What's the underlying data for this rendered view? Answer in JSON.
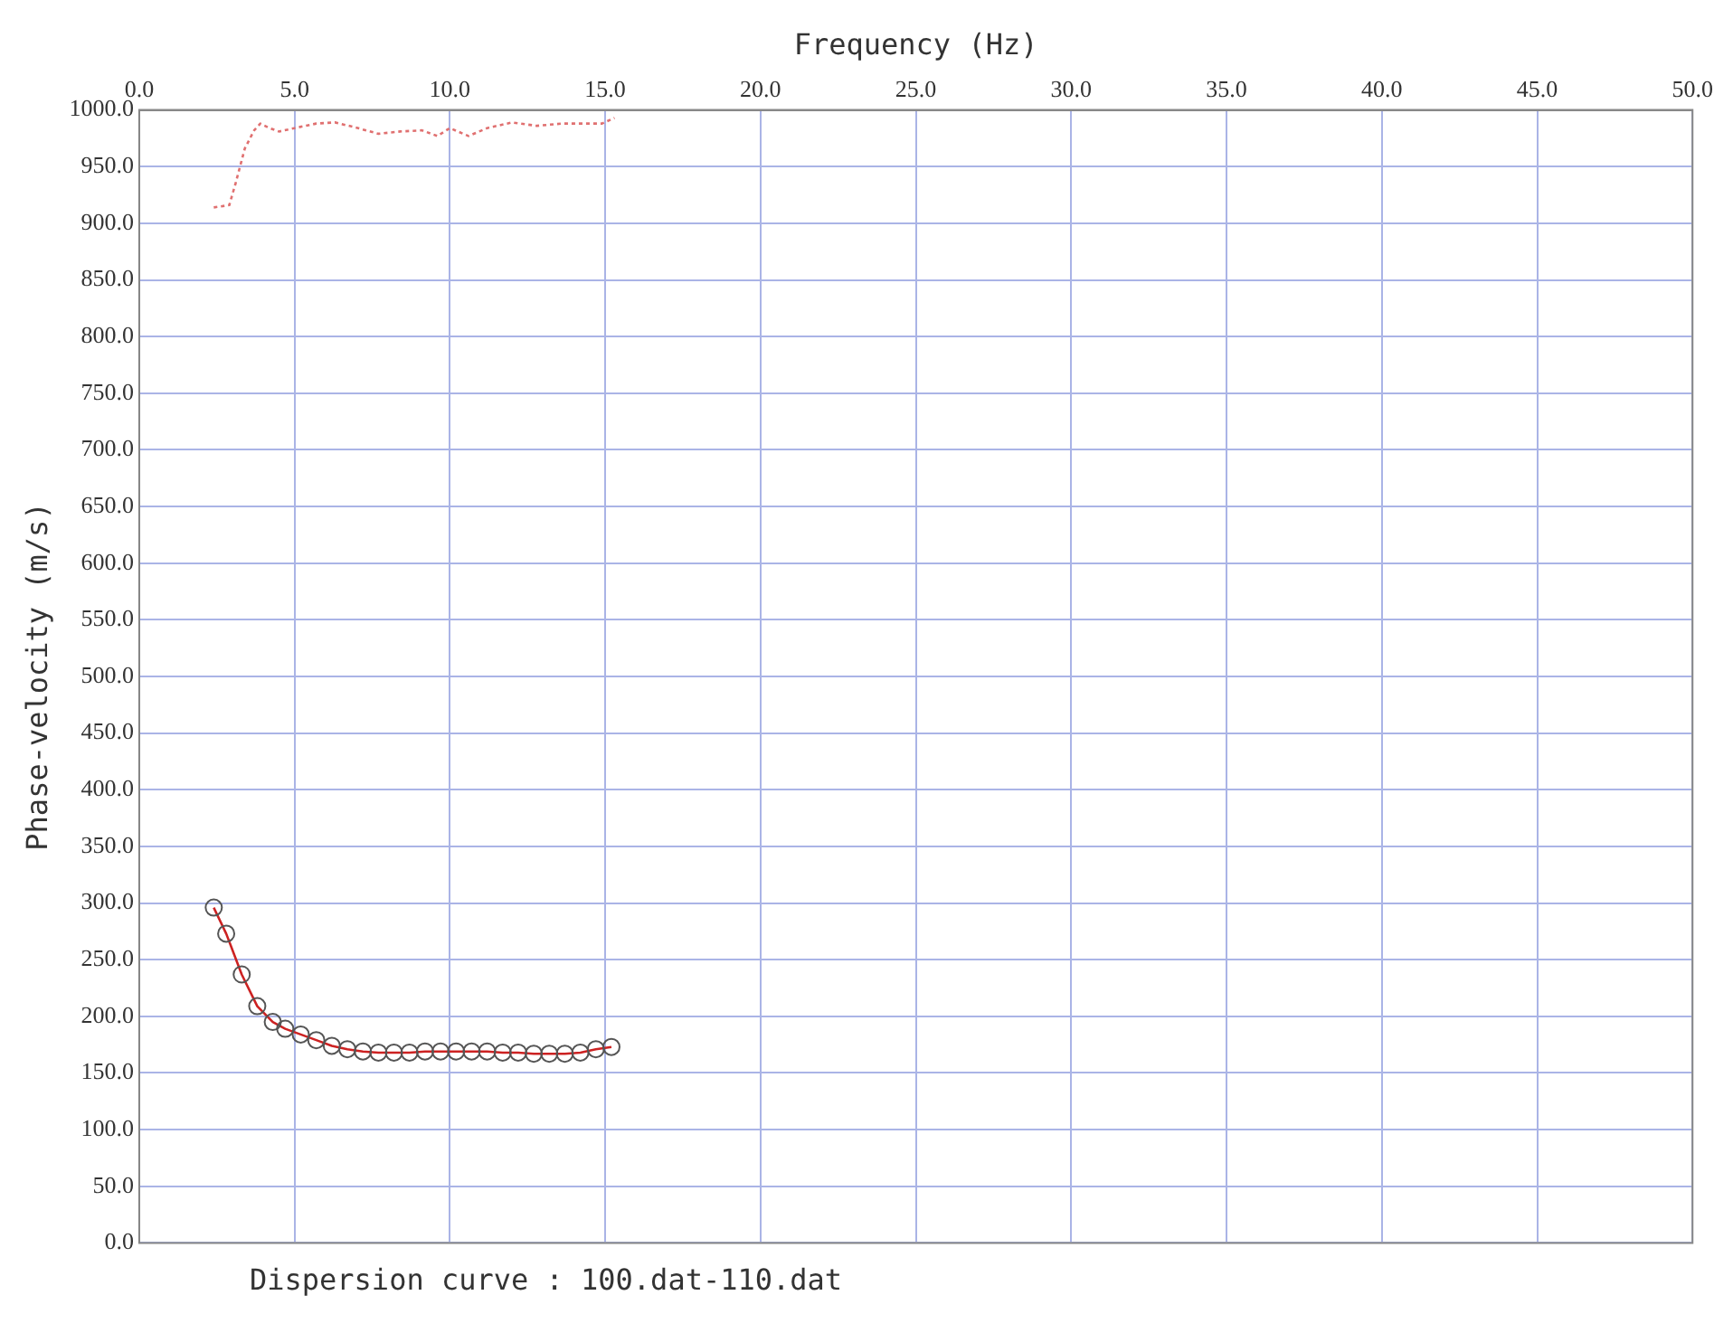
{
  "chart_data": {
    "type": "line",
    "xlabel": "Frequency (Hz)",
    "ylabel": "Phase-velocity (m/s)",
    "xlim": [
      0,
      50
    ],
    "xticks": [
      {
        "value": 0,
        "label": "0.0"
      },
      {
        "value": 5,
        "label": "5.0"
      },
      {
        "value": 10,
        "label": "10.0"
      },
      {
        "value": 15,
        "label": "15.0"
      },
      {
        "value": 20,
        "label": "20.0"
      },
      {
        "value": 25,
        "label": "25.0"
      },
      {
        "value": 30,
        "label": "30.0"
      },
      {
        "value": 35,
        "label": "35.0"
      },
      {
        "value": 40,
        "label": "40.0"
      },
      {
        "value": 45,
        "label": "45.0"
      },
      {
        "value": 50,
        "label": "50.0"
      }
    ],
    "ylim": [
      0,
      1000
    ],
    "yticks": [
      {
        "value": 0,
        "label": "0.0"
      },
      {
        "value": 50,
        "label": "50.0"
      },
      {
        "value": 100,
        "label": "100.0"
      },
      {
        "value": 150,
        "label": "150.0"
      },
      {
        "value": 200,
        "label": "200.0"
      },
      {
        "value": 250,
        "label": "250.0"
      },
      {
        "value": 300,
        "label": "300.0"
      },
      {
        "value": 350,
        "label": "350.0"
      },
      {
        "value": 400,
        "label": "400.0"
      },
      {
        "value": 450,
        "label": "450.0"
      },
      {
        "value": 500,
        "label": "500.0"
      },
      {
        "value": 550,
        "label": "550.0"
      },
      {
        "value": 600,
        "label": "600.0"
      },
      {
        "value": 650,
        "label": "650.0"
      },
      {
        "value": 700,
        "label": "700.0"
      },
      {
        "value": 750,
        "label": "750.0"
      },
      {
        "value": 800,
        "label": "800.0"
      },
      {
        "value": 850,
        "label": "850.0"
      },
      {
        "value": 900,
        "label": "900.0"
      },
      {
        "value": 950,
        "label": "950.0"
      },
      {
        "value": 1000,
        "label": "1000.0"
      }
    ],
    "grid": true,
    "legend": false,
    "annotations": [
      "Dispersion curve : 100.dat-110.dat"
    ],
    "series": [
      {
        "color": "#e07070",
        "marker": "none",
        "line_style": "dotted",
        "x": [
          2.4,
          2.9,
          3.1,
          3.4,
          3.7,
          3.9,
          4.2,
          4.5,
          5.0,
          5.7,
          6.3,
          6.9,
          7.7,
          8.4,
          9.1,
          9.6,
          10.0,
          10.6,
          11.2,
          12.0,
          12.8,
          13.6,
          14.4,
          14.9,
          15.3
        ],
        "values": [
          914,
          916,
          935,
          966,
          982,
          988,
          984,
          981,
          984,
          988,
          989,
          985,
          979,
          981,
          982,
          977,
          984,
          977,
          984,
          989,
          986,
          988,
          988,
          988,
          993
        ]
      },
      {
        "color": "#cc2222",
        "marker": "circle",
        "line_style": "solid",
        "x": [
          2.4,
          2.8,
          3.3,
          3.8,
          4.3,
          4.7,
          5.2,
          5.7,
          6.2,
          6.7,
          7.2,
          7.7,
          8.2,
          8.7,
          9.2,
          9.7,
          10.2,
          10.7,
          11.2,
          11.7,
          12.2,
          12.7,
          13.2,
          13.7,
          14.2,
          14.7,
          15.2
        ],
        "values": [
          296,
          273,
          237,
          209,
          195,
          189,
          184,
          179,
          174,
          171,
          169,
          168,
          168,
          168,
          169,
          169,
          169,
          169,
          169,
          168,
          168,
          167,
          167,
          167,
          168,
          171,
          173
        ]
      }
    ]
  }
}
